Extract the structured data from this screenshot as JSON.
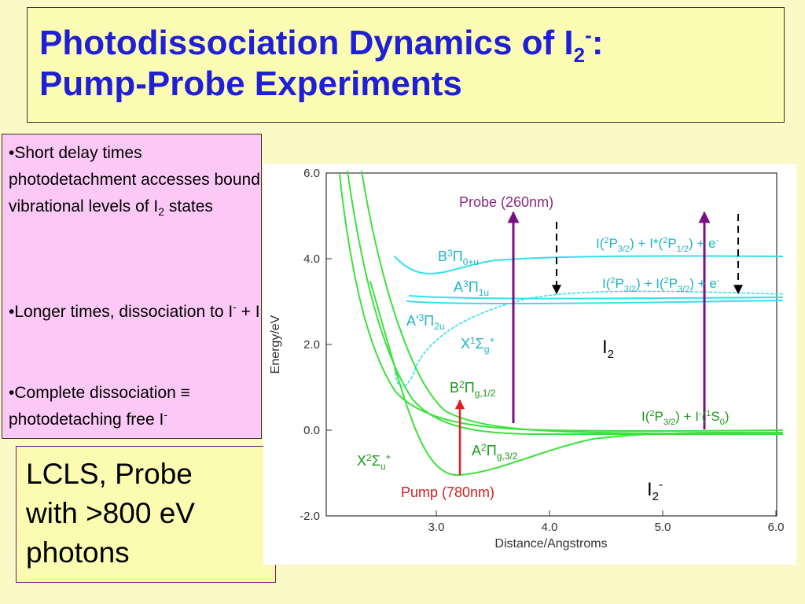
{
  "title": {
    "line1_main": "Photodissociation Dynamics of I",
    "line1_sub": "2",
    "line1_sup": "-",
    "line1_end": ":",
    "line2": "Pump-Probe Experiments"
  },
  "notes": {
    "item1": {
      "text": "•Short delay times photodetachment accesses bound vibrational levels of I",
      "sub": "2",
      "end": " states"
    },
    "item2": {
      "text": "•Longer times, dissociation to I",
      "sup": "-",
      "end": " + I"
    },
    "item3": {
      "text": "•Complete dissociation ≡ photodetaching free I",
      "sup": "-"
    }
  },
  "lcls": {
    "line1": "LCLS, Probe",
    "line2": "with >800 eV",
    "line3": "photons"
  },
  "plot": {
    "xlabel": "Distance/Angstroms",
    "ylabel": "Energy/eV",
    "x_ticks": [
      "3.0",
      "4.0",
      "5.0",
      "6.0"
    ],
    "y_ticks": [
      "6.0",
      "4.0",
      "2.0",
      "0.0",
      "-2.0"
    ],
    "probe_label": "Probe (260nm)",
    "pump_label": "Pump (780nm)",
    "neutral_label": "I",
    "neutral_sub": "2",
    "anion_label": "I",
    "anion_sub": "2",
    "anion_sup": "-",
    "states": {
      "B3": {
        "main": "B",
        "sup": "3",
        "greek": "Π",
        "sub": "0+u"
      },
      "A3": {
        "main": "A",
        "sup": "3",
        "greek": "Π",
        "sub": "1u"
      },
      "Aprime": {
        "main": "A'",
        "sup": "3",
        "greek": "Π",
        "sub": "2u"
      },
      "X1": {
        "main": "X",
        "sup": "1",
        "greek": "Σ",
        "sub": "g",
        "sup2": "+"
      },
      "B2": {
        "main": "B",
        "sup": "2",
        "greek": "Π",
        "sub": "g,1/2"
      },
      "A2": {
        "main": "A",
        "sup": "2",
        "greek": "Π",
        "sub": "g,3/2"
      },
      "X2": {
        "main": "X",
        "sup": "2",
        "greek": "Σ",
        "sub": "u",
        "sup2": "+"
      }
    },
    "asymptotes": {
      "upper": {
        "a": "I(",
        "a_sup": "2",
        "b": "P",
        "b_sub": "3/2",
        "c": ") + I*(",
        "c_sup": "2",
        "d": "P",
        "d_sub": "1/2",
        "e": ") + e",
        "e_sup": "-"
      },
      "middle": {
        "a": "I(",
        "a_sup": "2",
        "b": "P",
        "b_sub": "3/2",
        "c": ") + I(",
        "c_sup": "2",
        "d": "P",
        "d_sub": "3/2",
        "e": ") + e",
        "e_sup": "-"
      },
      "lower": {
        "a": "I(",
        "a_sup": "2",
        "b": "P",
        "b_sub": "3/2",
        "c": ") + I",
        "c_sup": "-",
        "d": "(",
        "d_sup": "1",
        "e": "S",
        "e_sub": "0",
        "f": ")"
      }
    },
    "colors": {
      "anion_curves": "#3de13d",
      "neutral_curves": "#34e0ec",
      "probe_arrow": "#7a0f82",
      "pump_arrow": "#e02020",
      "label_purple": "#8a2a80",
      "label_teal": "#1cb4c4",
      "label_green": "#1a9a1a",
      "label_red": "#d02020"
    }
  }
}
